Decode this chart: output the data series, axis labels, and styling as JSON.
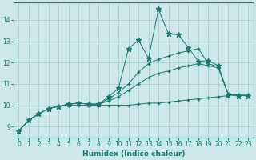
{
  "xlabel": "Humidex (Indice chaleur)",
  "xlim": [
    -0.5,
    23.5
  ],
  "ylim": [
    8.5,
    14.8
  ],
  "yticks": [
    9,
    10,
    11,
    12,
    13,
    14
  ],
  "xticks": [
    0,
    1,
    2,
    3,
    4,
    5,
    6,
    7,
    8,
    9,
    10,
    11,
    12,
    13,
    14,
    15,
    16,
    17,
    18,
    19,
    20,
    21,
    22,
    23
  ],
  "background_color": "#cce8e8",
  "grid_color": "#aad0d0",
  "line_color": "#1a7a6e",
  "lines": [
    [
      8.8,
      9.3,
      9.6,
      9.85,
      9.95,
      10.0,
      10.0,
      10.0,
      10.0,
      10.0,
      10.0,
      10.0,
      10.05,
      10.1,
      10.1,
      10.15,
      10.2,
      10.25,
      10.3,
      10.35,
      10.4,
      10.45,
      10.5,
      10.5
    ],
    [
      8.8,
      9.3,
      9.6,
      9.85,
      9.95,
      10.05,
      10.1,
      10.05,
      10.05,
      10.2,
      10.4,
      10.7,
      11.0,
      11.3,
      11.5,
      11.6,
      11.75,
      11.85,
      11.95,
      11.85,
      11.75,
      10.5,
      10.45,
      10.45
    ],
    [
      8.8,
      9.3,
      9.6,
      9.85,
      9.95,
      10.05,
      10.1,
      10.05,
      10.05,
      10.3,
      10.6,
      11.0,
      11.55,
      11.95,
      12.15,
      12.3,
      12.45,
      12.55,
      12.65,
      11.95,
      11.8,
      10.5,
      10.45,
      10.45
    ],
    [
      8.8,
      9.3,
      9.6,
      9.85,
      9.95,
      10.05,
      10.1,
      10.05,
      10.05,
      10.4,
      10.8,
      12.65,
      13.05,
      12.2,
      14.5,
      13.35,
      13.3,
      12.7,
      12.05,
      12.1,
      11.85,
      10.5,
      10.45,
      10.45
    ]
  ],
  "marker_styles": [
    "+",
    "+",
    "+",
    "*"
  ],
  "marker_sizes": [
    3.5,
    3.5,
    3.5,
    4.5
  ]
}
